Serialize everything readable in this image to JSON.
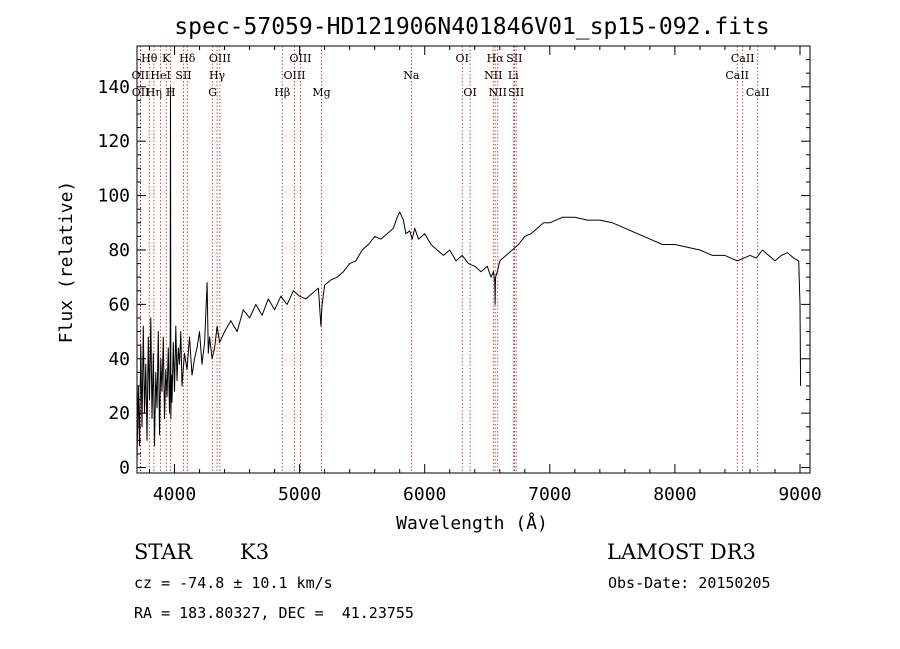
{
  "chart_data": {
    "type": "line",
    "title": "spec-57059-HD121906N401846V01_sp15-092.fits",
    "xlabel": "Wavelength (Å)",
    "ylabel": "Flux (relative)",
    "xlim": [
      3700,
      9080
    ],
    "ylim": [
      -2,
      155
    ],
    "x_ticks": [
      4000,
      5000,
      6000,
      7000,
      8000,
      9000
    ],
    "y_ticks": [
      0,
      20,
      40,
      60,
      80,
      100,
      120,
      140
    ],
    "line_color": "#000000",
    "marker_color": "#b22222",
    "series": [
      {
        "name": "flux",
        "x": [
          3700,
          3710,
          3720,
          3730,
          3740,
          3750,
          3760,
          3770,
          3780,
          3790,
          3800,
          3810,
          3820,
          3830,
          3840,
          3850,
          3860,
          3870,
          3880,
          3890,
          3900,
          3910,
          3920,
          3930,
          3940,
          3950,
          3960,
          3965,
          3968,
          3971,
          3975,
          3980,
          3990,
          4000,
          4010,
          4020,
          4030,
          4040,
          4050,
          4060,
          4080,
          4100,
          4120,
          4140,
          4160,
          4180,
          4200,
          4220,
          4240,
          4260,
          4270,
          4280,
          4300,
          4320,
          4340,
          4360,
          4400,
          4450,
          4500,
          4550,
          4600,
          4650,
          4700,
          4750,
          4800,
          4850,
          4900,
          4950,
          5000,
          5050,
          5100,
          5150,
          5170,
          5180,
          5200,
          5250,
          5300,
          5350,
          5400,
          5450,
          5500,
          5550,
          5600,
          5650,
          5700,
          5750,
          5780,
          5800,
          5830,
          5850,
          5880,
          5900,
          5920,
          5950,
          6000,
          6050,
          6100,
          6150,
          6200,
          6250,
          6300,
          6350,
          6400,
          6450,
          6500,
          6530,
          6550,
          6560,
          6563,
          6566,
          6580,
          6600,
          6650,
          6700,
          6750,
          6800,
          6850,
          6900,
          6950,
          7000,
          7050,
          7100,
          7200,
          7300,
          7400,
          7500,
          7600,
          7700,
          7800,
          7900,
          8000,
          8100,
          8200,
          8300,
          8400,
          8500,
          8550,
          8600,
          8650,
          8700,
          8750,
          8800,
          8850,
          8900,
          8950,
          8990,
          9000,
          9005
        ],
        "y": [
          2,
          30,
          8,
          45,
          15,
          52,
          20,
          38,
          10,
          48,
          25,
          55,
          18,
          42,
          8,
          35,
          22,
          50,
          12,
          40,
          28,
          48,
          18,
          36,
          26,
          44,
          20,
          32,
          140,
          18,
          34,
          24,
          46,
          28,
          52,
          32,
          44,
          38,
          50,
          30,
          42,
          36,
          48,
          34,
          40,
          44,
          50,
          38,
          46,
          68,
          42,
          48,
          40,
          44,
          52,
          46,
          50,
          54,
          50,
          58,
          55,
          60,
          56,
          62,
          58,
          63,
          60,
          65,
          63,
          62,
          64,
          66,
          52,
          60,
          67,
          69,
          70,
          72,
          75,
          76,
          80,
          82,
          85,
          84,
          86,
          88,
          92,
          94,
          91,
          86,
          87,
          84,
          88,
          84,
          86,
          82,
          80,
          78,
          80,
          76,
          78,
          75,
          74,
          72,
          74,
          70,
          72,
          68,
          60,
          70,
          72,
          76,
          78,
          80,
          82,
          85,
          86,
          88,
          90,
          90,
          91,
          92,
          92,
          91,
          91,
          90,
          88,
          86,
          84,
          82,
          82,
          81,
          80,
          78,
          78,
          76,
          77,
          78,
          77,
          80,
          78,
          76,
          78,
          79,
          77,
          76,
          60,
          30
        ]
      }
    ],
    "line_markers": [
      {
        "label": "Hθ",
        "wavelength": 3798,
        "row": 0
      },
      {
        "label": "OII",
        "wavelength": 3727,
        "row": 1
      },
      {
        "label": "OII",
        "wavelength": 3729,
        "row": 2
      },
      {
        "label": "Hη",
        "wavelength": 3835,
        "row": 2
      },
      {
        "label": "HeI",
        "wavelength": 3889,
        "row": 1
      },
      {
        "label": "K",
        "wavelength": 3934,
        "row": 0
      },
      {
        "label": "H",
        "wavelength": 3969,
        "row": 2
      },
      {
        "label": "Hδ",
        "wavelength": 4102,
        "row": 0
      },
      {
        "label": "SII",
        "wavelength": 4072,
        "row": 1
      },
      {
        "label": "OIII",
        "wavelength": 4363,
        "row": 0
      },
      {
        "label": "Hγ",
        "wavelength": 4340,
        "row": 1
      },
      {
        "label": "G",
        "wavelength": 4305,
        "row": 2
      },
      {
        "label": "OIII",
        "wavelength": 5007,
        "row": 0
      },
      {
        "label": "OIII",
        "wavelength": 4959,
        "row": 1
      },
      {
        "label": "Hβ",
        "wavelength": 4861,
        "row": 2
      },
      {
        "label": "Mg",
        "wavelength": 5175,
        "row": 2
      },
      {
        "label": "Na",
        "wavelength": 5893,
        "row": 1
      },
      {
        "label": "OI",
        "wavelength": 6300,
        "row": 0
      },
      {
        "label": "OI",
        "wavelength": 6363,
        "row": 2
      },
      {
        "label": "Hα",
        "wavelength": 6563,
        "row": 0
      },
      {
        "label": "NII",
        "wavelength": 6548,
        "row": 1
      },
      {
        "label": "NII",
        "wavelength": 6584,
        "row": 2
      },
      {
        "label": "SII",
        "wavelength": 6717,
        "row": 0
      },
      {
        "label": "Li",
        "wavelength": 6708,
        "row": 1
      },
      {
        "label": "SII",
        "wavelength": 6731,
        "row": 2
      },
      {
        "label": "CaII",
        "wavelength": 8542,
        "row": 0
      },
      {
        "label": "CaII",
        "wavelength": 8498,
        "row": 1
      },
      {
        "label": "CaII",
        "wavelength": 8662,
        "row": 2
      }
    ]
  },
  "info": {
    "object_class": "STAR",
    "subclass": "K3",
    "survey": "LAMOST DR3",
    "velocity": "cz = -74.8 ± 10.1 km/s",
    "obs_date": "Obs-Date: 20150205",
    "coords": "RA = 183.80327, DEC =  41.23755"
  }
}
